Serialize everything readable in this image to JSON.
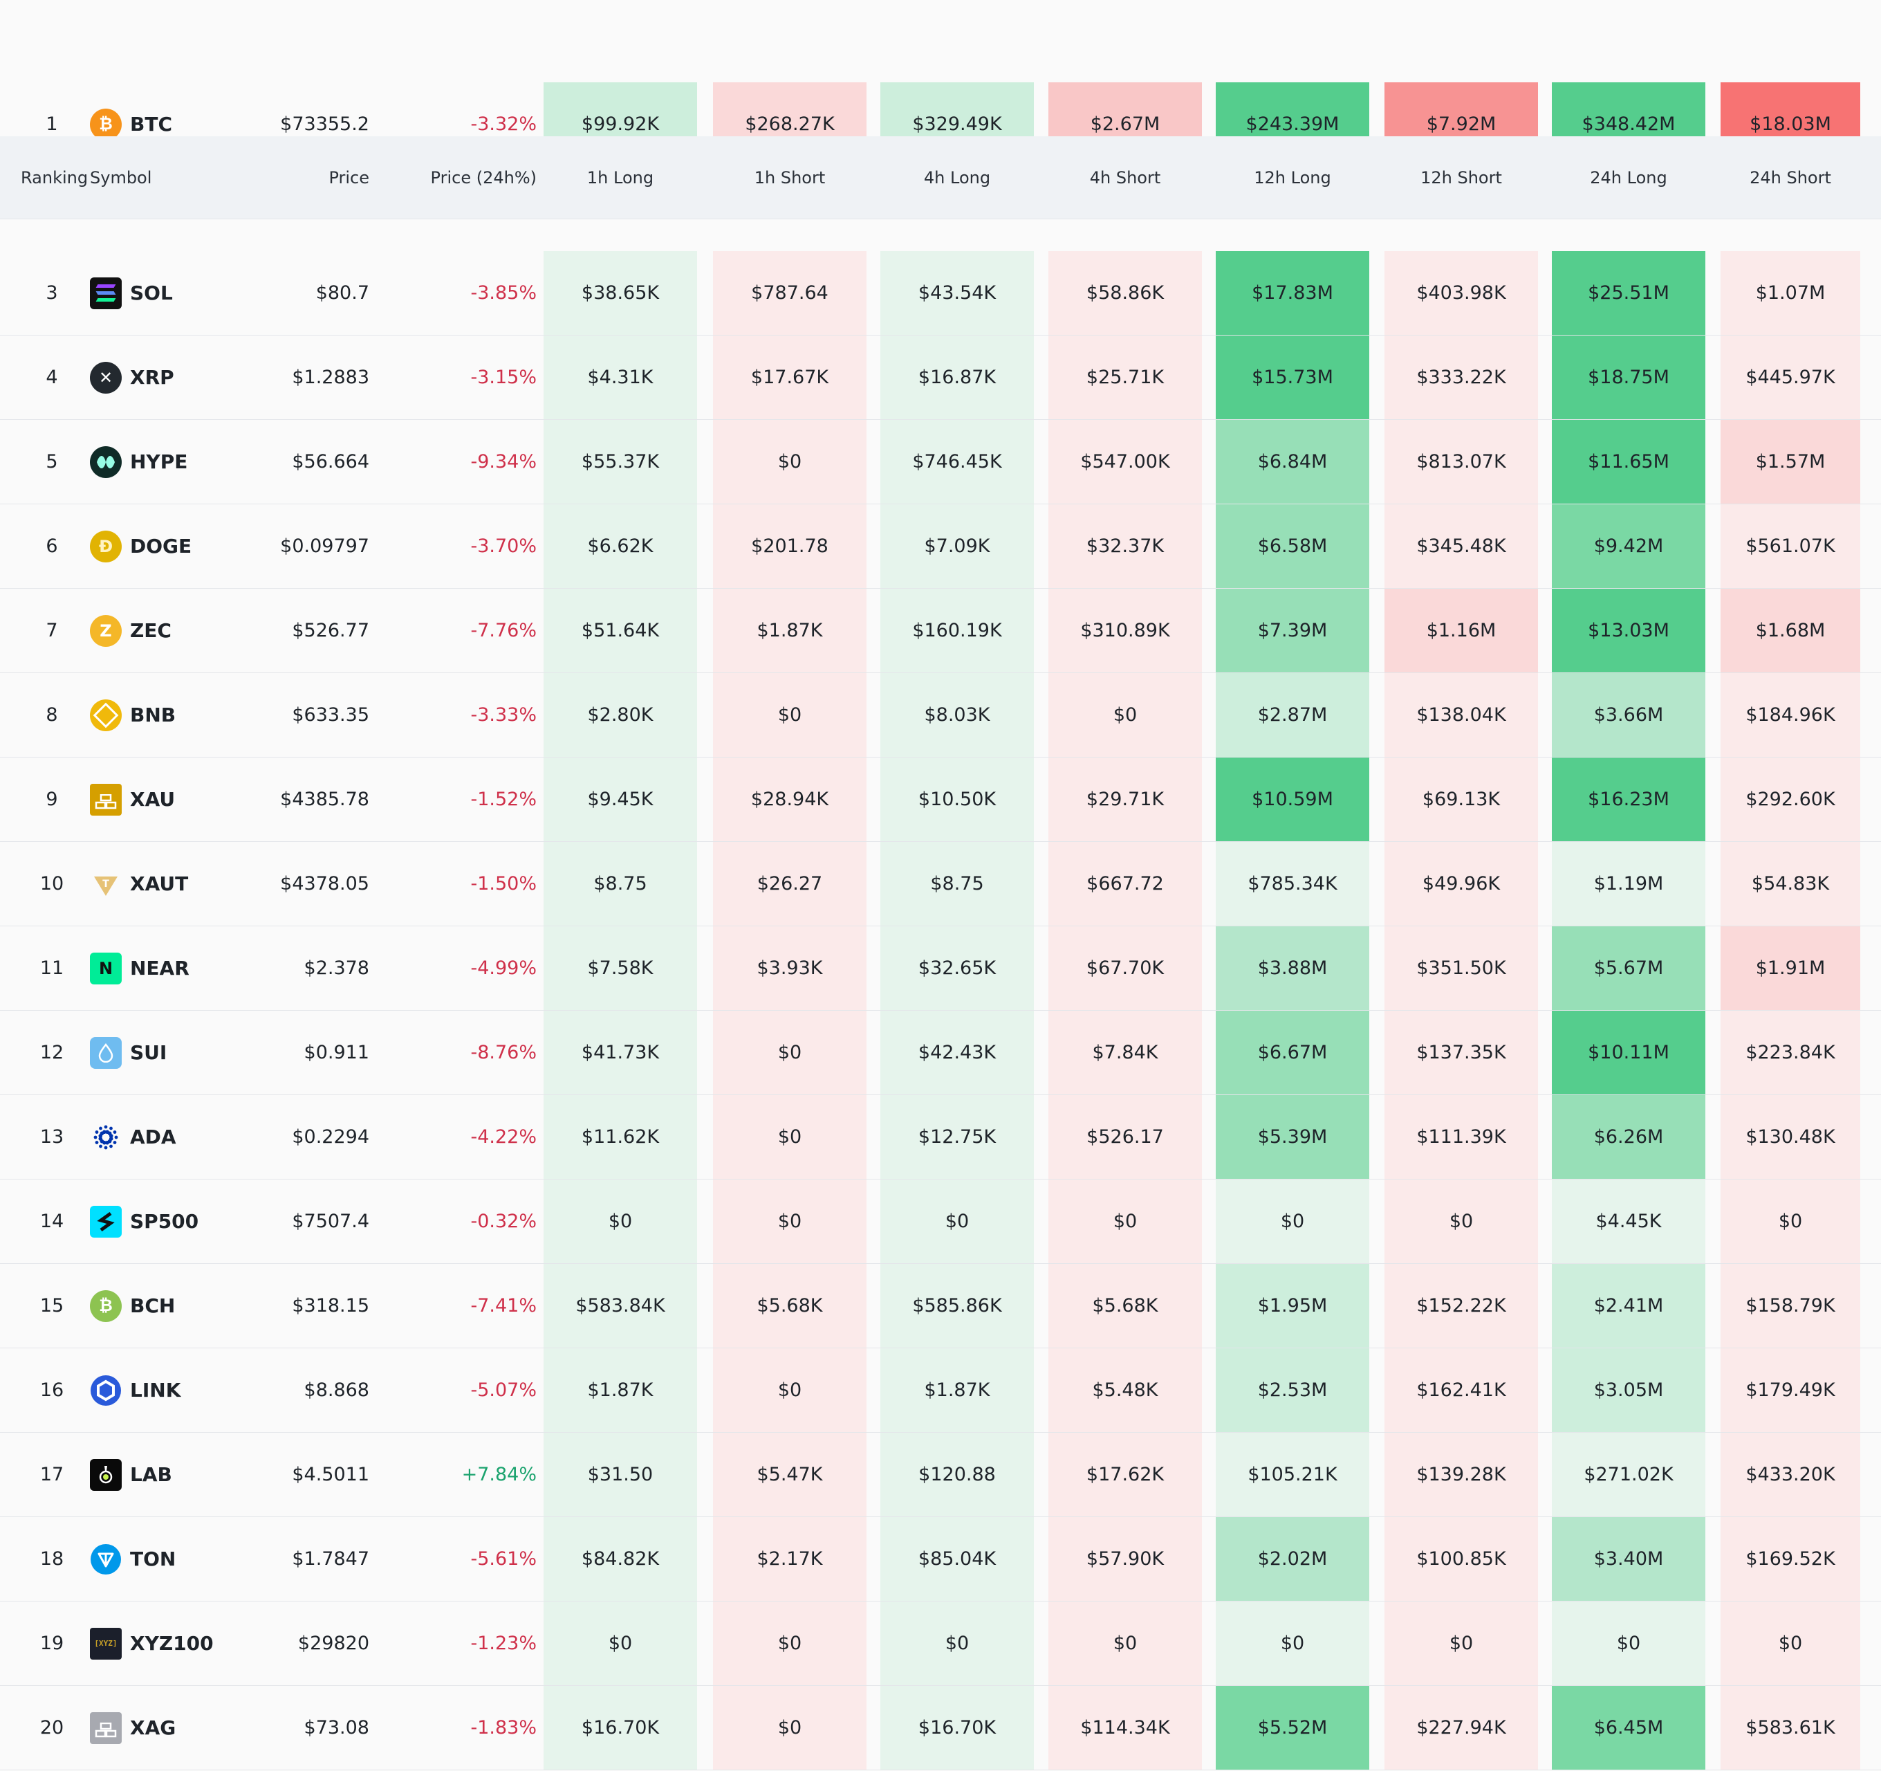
{
  "header": {
    "ranking": "Ranking",
    "symbol": "Symbol",
    "price": "Price",
    "price_change": "Price (24h%)",
    "h1_long": "1h Long",
    "h1_short": "1h Short",
    "h4_long": "4h Long",
    "h4_short": "4h Short",
    "h12_long": "12h Long",
    "h12_short": "12h Short",
    "h24_long": "24h Long",
    "h24_short": "24h Short"
  },
  "rows": [
    {
      "rank": "1",
      "symbol": "BTC",
      "icon": "bitcoin-icon",
      "price": "$73355.2",
      "change": "-3.32%",
      "values": [
        "$99.92K",
        "$268.27K",
        "$329.49K",
        "$2.67M",
        "$243.39M",
        "$7.92M",
        "$348.42M",
        "$18.03M"
      ]
    },
    {
      "rank": "3",
      "symbol": "SOL",
      "icon": "solana-icon",
      "price": "$80.7",
      "change": "-3.85%",
      "values": [
        "$38.65K",
        "$787.64",
        "$43.54K",
        "$58.86K",
        "$17.83M",
        "$403.98K",
        "$25.51M",
        "$1.07M"
      ]
    },
    {
      "rank": "4",
      "symbol": "XRP",
      "icon": "xrp-icon",
      "price": "$1.2883",
      "change": "-3.15%",
      "values": [
        "$4.31K",
        "$17.67K",
        "$16.87K",
        "$25.71K",
        "$15.73M",
        "$333.22K",
        "$18.75M",
        "$445.97K"
      ]
    },
    {
      "rank": "5",
      "symbol": "HYPE",
      "icon": "hyperliquid-icon",
      "price": "$56.664",
      "change": "-9.34%",
      "values": [
        "$55.37K",
        "$0",
        "$746.45K",
        "$547.00K",
        "$6.84M",
        "$813.07K",
        "$11.65M",
        "$1.57M"
      ]
    },
    {
      "rank": "6",
      "symbol": "DOGE",
      "icon": "dogecoin-icon",
      "price": "$0.09797",
      "change": "-3.70%",
      "values": [
        "$6.62K",
        "$201.78",
        "$7.09K",
        "$32.37K",
        "$6.58M",
        "$345.48K",
        "$9.42M",
        "$561.07K"
      ]
    },
    {
      "rank": "7",
      "symbol": "ZEC",
      "icon": "zcash-icon",
      "price": "$526.77",
      "change": "-7.76%",
      "values": [
        "$51.64K",
        "$1.87K",
        "$160.19K",
        "$310.89K",
        "$7.39M",
        "$1.16M",
        "$13.03M",
        "$1.68M"
      ]
    },
    {
      "rank": "8",
      "symbol": "BNB",
      "icon": "bnb-icon",
      "price": "$633.35",
      "change": "-3.33%",
      "values": [
        "$2.80K",
        "$0",
        "$8.03K",
        "$0",
        "$2.87M",
        "$138.04K",
        "$3.66M",
        "$184.96K"
      ]
    },
    {
      "rank": "9",
      "symbol": "XAU",
      "icon": "gold-bars-icon",
      "price": "$4385.78",
      "change": "-1.52%",
      "values": [
        "$9.45K",
        "$28.94K",
        "$10.50K",
        "$29.71K",
        "$10.59M",
        "$69.13K",
        "$16.23M",
        "$292.60K"
      ]
    },
    {
      "rank": "10",
      "symbol": "XAUT",
      "icon": "tether-gold-icon",
      "price": "$4378.05",
      "change": "-1.50%",
      "values": [
        "$8.75",
        "$26.27",
        "$8.75",
        "$667.72",
        "$785.34K",
        "$49.96K",
        "$1.19M",
        "$54.83K"
      ]
    },
    {
      "rank": "11",
      "symbol": "NEAR",
      "icon": "near-icon",
      "price": "$2.378",
      "change": "-4.99%",
      "values": [
        "$7.58K",
        "$3.93K",
        "$32.65K",
        "$67.70K",
        "$3.88M",
        "$351.50K",
        "$5.67M",
        "$1.91M"
      ]
    },
    {
      "rank": "12",
      "symbol": "SUI",
      "icon": "sui-icon",
      "price": "$0.911",
      "change": "-8.76%",
      "values": [
        "$41.73K",
        "$0",
        "$42.43K",
        "$7.84K",
        "$6.67M",
        "$137.35K",
        "$10.11M",
        "$223.84K"
      ]
    },
    {
      "rank": "13",
      "symbol": "ADA",
      "icon": "cardano-icon",
      "price": "$0.2294",
      "change": "-4.22%",
      "values": [
        "$11.62K",
        "$0",
        "$12.75K",
        "$526.17",
        "$5.39M",
        "$111.39K",
        "$6.26M",
        "$130.48K"
      ]
    },
    {
      "rank": "14",
      "symbol": "SP500",
      "icon": "sp500-icon",
      "price": "$7507.4",
      "change": "-0.32%",
      "values": [
        "$0",
        "$0",
        "$0",
        "$0",
        "$0",
        "$0",
        "$4.45K",
        "$0"
      ]
    },
    {
      "rank": "15",
      "symbol": "BCH",
      "icon": "bitcoin-cash-icon",
      "price": "$318.15",
      "change": "-7.41%",
      "values": [
        "$583.84K",
        "$5.68K",
        "$585.86K",
        "$5.68K",
        "$1.95M",
        "$152.22K",
        "$2.41M",
        "$158.79K"
      ]
    },
    {
      "rank": "16",
      "symbol": "LINK",
      "icon": "chainlink-icon",
      "price": "$8.868",
      "change": "-5.07%",
      "values": [
        "$1.87K",
        "$0",
        "$1.87K",
        "$5.48K",
        "$2.53M",
        "$162.41K",
        "$3.05M",
        "$179.49K"
      ]
    },
    {
      "rank": "17",
      "symbol": "LAB",
      "icon": "lab-icon",
      "price": "$4.5011",
      "change": "+7.84%",
      "values": [
        "$31.50",
        "$5.47K",
        "$120.88",
        "$17.62K",
        "$105.21K",
        "$139.28K",
        "$271.02K",
        "$433.20K"
      ]
    },
    {
      "rank": "18",
      "symbol": "TON",
      "icon": "toncoin-icon",
      "price": "$1.7847",
      "change": "-5.61%",
      "values": [
        "$84.82K",
        "$2.17K",
        "$85.04K",
        "$57.90K",
        "$2.02M",
        "$100.85K",
        "$3.40M",
        "$169.52K"
      ]
    },
    {
      "rank": "19",
      "symbol": "XYZ100",
      "icon": "xyz-icon",
      "price": "$29820",
      "change": "-1.23%",
      "values": [
        "$0",
        "$0",
        "$0",
        "$0",
        "$0",
        "$0",
        "$0",
        "$0"
      ]
    },
    {
      "rank": "20",
      "symbol": "XAG",
      "icon": "silver-bars-icon",
      "price": "$73.08",
      "change": "-1.83%",
      "values": [
        "$16.70K",
        "$0",
        "$16.70K",
        "$114.34K",
        "$5.52M",
        "$227.94K",
        "$6.45M",
        "$583.61K"
      ]
    }
  ],
  "colors": {
    "long_scale": [
      "#e6f4ec",
      "#cdeedc",
      "#b4e6cb",
      "#97dfb7",
      "#7ad8a4",
      "#55cd8d"
    ],
    "short_scale": [
      "#fbeaea",
      "#fad9d9",
      "#f9c7c7",
      "#f8b1b1",
      "#f79393",
      "#f77373"
    ],
    "negative_text": "#cf304a",
    "positive_text": "#1ba36e"
  },
  "cell_levels": [
    [
      1,
      1,
      1,
      2,
      5,
      4,
      5,
      5
    ],
    [
      0,
      0,
      0,
      0,
      5,
      0,
      5,
      0
    ],
    [
      0,
      0,
      0,
      0,
      5,
      0,
      5,
      0
    ],
    [
      0,
      0,
      0,
      0,
      3,
      0,
      5,
      1
    ],
    [
      0,
      0,
      0,
      0,
      3,
      0,
      4,
      0
    ],
    [
      0,
      0,
      0,
      0,
      3,
      1,
      5,
      1
    ],
    [
      0,
      0,
      0,
      0,
      1,
      0,
      2,
      0
    ],
    [
      0,
      0,
      0,
      0,
      5,
      0,
      5,
      0
    ],
    [
      0,
      0,
      0,
      0,
      0,
      0,
      0,
      0
    ],
    [
      0,
      0,
      0,
      0,
      2,
      0,
      3,
      1
    ],
    [
      0,
      0,
      0,
      0,
      3,
      0,
      5,
      0
    ],
    [
      0,
      0,
      0,
      0,
      3,
      0,
      3,
      0
    ],
    [
      0,
      0,
      0,
      0,
      0,
      0,
      0,
      0
    ],
    [
      0,
      0,
      0,
      0,
      1,
      0,
      1,
      0
    ],
    [
      0,
      0,
      0,
      0,
      1,
      0,
      1,
      0
    ],
    [
      0,
      0,
      0,
      0,
      0,
      0,
      0,
      0
    ],
    [
      0,
      0,
      0,
      0,
      2,
      0,
      2,
      0
    ],
    [
      0,
      0,
      0,
      0,
      0,
      0,
      0,
      0
    ],
    [
      0,
      0,
      0,
      0,
      4,
      0,
      4,
      0
    ]
  ]
}
